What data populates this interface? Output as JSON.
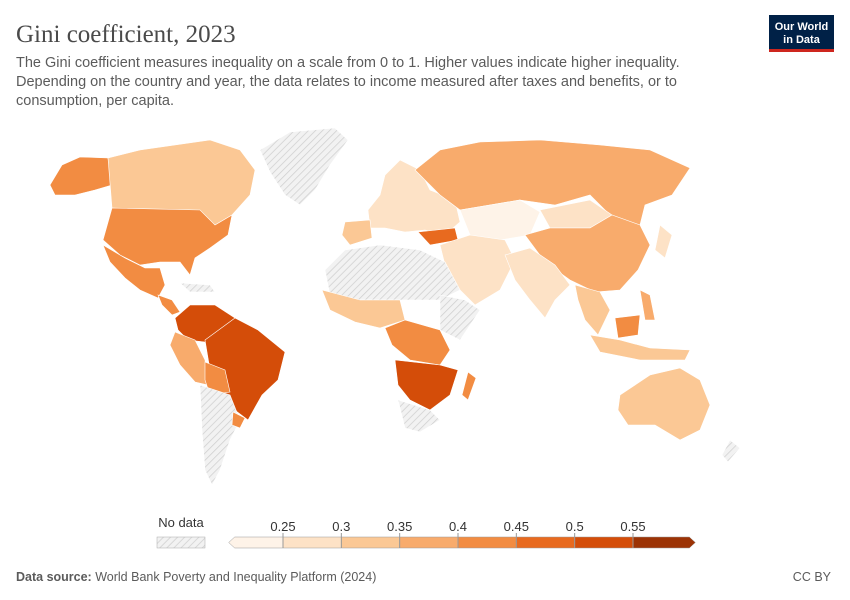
{
  "header": {
    "title": "Gini coefficient, 2023",
    "subtitle": [
      "The Gini coefficient measures inequality on a scale from 0 to 1. Higher values indicate higher inequality.",
      "Depending on the country and year, the data relates to income measured after taxes and benefits, or to",
      "consumption, per capita."
    ],
    "logo": [
      "Our World",
      "in Data"
    ]
  },
  "legend": {
    "no_data": "No data",
    "ticks": [
      0.25,
      0.3,
      0.35,
      0.4,
      0.45,
      0.5,
      0.55
    ],
    "colors": [
      "#fef3e8",
      "#fde2c6",
      "#fbc895",
      "#f8ab6c",
      "#f28c42",
      "#e86a1f",
      "#d44d09",
      "#9c3305"
    ]
  },
  "footer": {
    "source_label": "Data source:",
    "source": "World Bank Poverty and Inequality Platform (2024)",
    "license": "CC BY"
  }
}
